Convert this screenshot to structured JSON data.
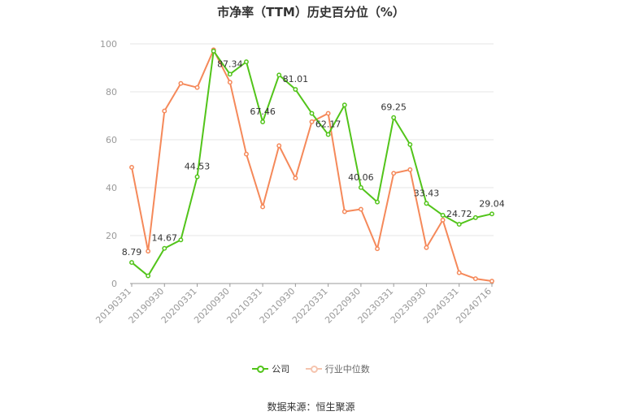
{
  "title": "市净率（TTM）历史百分位（%）",
  "source": "数据来源：恒生聚源",
  "colors": {
    "company": "#52c41a",
    "industry": "#f5895a",
    "grid": "#e6e6e6",
    "axis": "#999999"
  },
  "chart_data": {
    "type": "line",
    "title": "市净率（TTM）历史百分位（%）",
    "ylim": [
      0,
      100
    ],
    "yticks": [
      0,
      20,
      40,
      60,
      80,
      100
    ],
    "grid": true,
    "legend_position": "bottom",
    "x_tick_labels": [
      "20190331",
      "20190930",
      "20200331",
      "20200930",
      "20210331",
      "20210930",
      "20220331",
      "20220930",
      "20230331",
      "20230930",
      "20240331",
      "20240716"
    ],
    "x_tick_indices": [
      0,
      2,
      4,
      6,
      8,
      10,
      12,
      14,
      16,
      18,
      20,
      22
    ],
    "x": [
      "20190331",
      "20190630",
      "20190930",
      "20191231",
      "20200331",
      "20200630",
      "20200930",
      "20201231",
      "20210331",
      "20210630",
      "20210930",
      "20211231",
      "20220331",
      "20220630",
      "20220930",
      "20221231",
      "20230331",
      "20230630",
      "20230930",
      "20231231",
      "20240331",
      "20240630",
      "20240716"
    ],
    "series": [
      {
        "name": "公司",
        "color": "#52c41a",
        "values": [
          8.79,
          3.2,
          14.67,
          18.2,
          44.53,
          97.0,
          87.34,
          92.5,
          67.46,
          87.0,
          81.01,
          71.0,
          62.17,
          74.5,
          40.06,
          34.0,
          69.25,
          58.0,
          33.43,
          28.5,
          24.72,
          27.5,
          29.04
        ],
        "labels": [
          "8.79",
          "",
          "14.67",
          "",
          "44.53",
          "",
          "87.34",
          "",
          "67.46",
          "",
          "81.01",
          "",
          "62.17",
          "",
          "40.06",
          "",
          "69.25",
          "",
          "33.43",
          "",
          "24.72",
          "",
          "29.04"
        ]
      },
      {
        "name": "行业中位数",
        "color": "#f5895a",
        "values": [
          48.5,
          13.5,
          72.0,
          83.5,
          81.8,
          97.5,
          84.0,
          54.0,
          32.0,
          57.5,
          44.0,
          67.5,
          71.0,
          30.0,
          31.0,
          14.5,
          46.0,
          47.5,
          15.0,
          26.5,
          4.5,
          2.0,
          1.0
        ]
      }
    ]
  }
}
